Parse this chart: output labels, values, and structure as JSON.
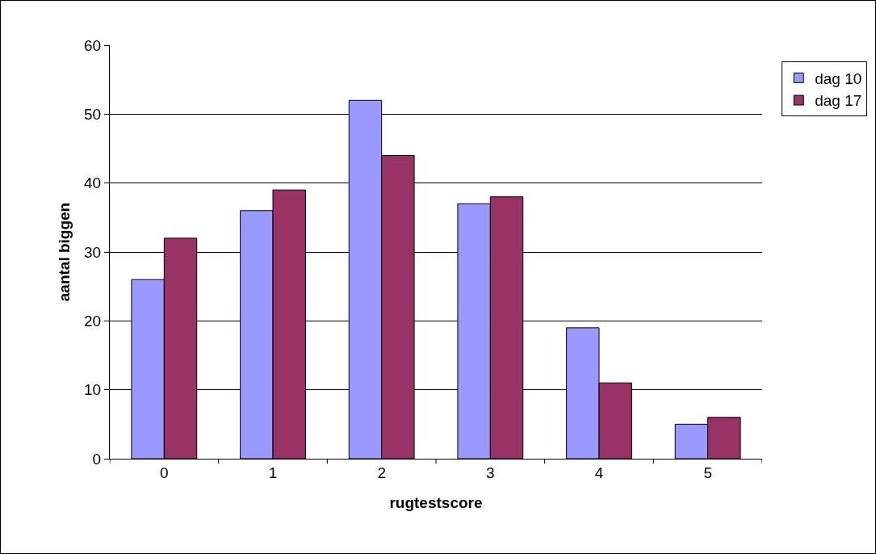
{
  "chart_data": {
    "type": "bar",
    "xlabel": "rugtestscore",
    "ylabel": "aantal biggen",
    "categories": [
      "0",
      "1",
      "2",
      "3",
      "4",
      "5"
    ],
    "series": [
      {
        "name": "dag 10",
        "color": "#9999ff",
        "values": [
          26,
          36,
          52,
          37,
          19,
          5
        ]
      },
      {
        "name": "dag 17",
        "color": "#993366",
        "values": [
          32,
          39,
          44,
          38,
          11,
          6
        ]
      }
    ],
    "ylim": [
      0,
      60
    ],
    "yticks": [
      0,
      10,
      20,
      30,
      40,
      50,
      60
    ],
    "grid": "y",
    "legend": "top right"
  }
}
